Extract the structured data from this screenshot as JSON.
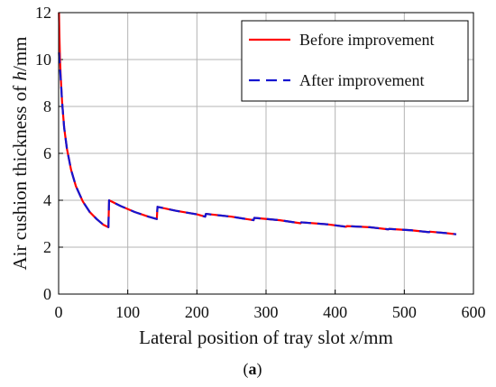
{
  "chart_data": {
    "type": "line",
    "title": "",
    "xlabel": {
      "prefix": "Lateral position of tray slot ",
      "var": "x",
      "suffix": "/mm"
    },
    "ylabel": {
      "prefix": "Air cushion thickness of ",
      "var": "h",
      "suffix": "/mm"
    },
    "xlim": [
      0,
      600
    ],
    "ylim": [
      0,
      12
    ],
    "xticks": [
      0,
      100,
      200,
      300,
      400,
      500,
      600
    ],
    "yticks": [
      0,
      2,
      4,
      6,
      8,
      10,
      12
    ],
    "grid": true,
    "legend_position": "top-right",
    "series": [
      {
        "name": "Before improvement",
        "color": "#ff0000",
        "dash": "solid",
        "points": [
          [
            0.5,
            12.0
          ],
          [
            1,
            11.2
          ],
          [
            2,
            10.0
          ],
          [
            3,
            9.3
          ],
          [
            5,
            8.2
          ],
          [
            8,
            7.1
          ],
          [
            12,
            6.2
          ],
          [
            18,
            5.3
          ],
          [
            25,
            4.6
          ],
          [
            35,
            3.95
          ],
          [
            45,
            3.5
          ],
          [
            55,
            3.2
          ],
          [
            65,
            2.95
          ],
          [
            72,
            2.85
          ],
          [
            73,
            4.0
          ],
          [
            90,
            3.75
          ],
          [
            110,
            3.5
          ],
          [
            130,
            3.3
          ],
          [
            142,
            3.2
          ],
          [
            143,
            3.72
          ],
          [
            170,
            3.55
          ],
          [
            200,
            3.4
          ],
          [
            212,
            3.3
          ],
          [
            213,
            3.42
          ],
          [
            250,
            3.3
          ],
          [
            282,
            3.15
          ],
          [
            283,
            3.25
          ],
          [
            320,
            3.15
          ],
          [
            350,
            3.02
          ],
          [
            351,
            3.06
          ],
          [
            390,
            2.97
          ],
          [
            416,
            2.87
          ],
          [
            417,
            2.9
          ],
          [
            450,
            2.85
          ],
          [
            477,
            2.76
          ],
          [
            478,
            2.78
          ],
          [
            510,
            2.72
          ],
          [
            536,
            2.64
          ],
          [
            537,
            2.66
          ],
          [
            560,
            2.6
          ],
          [
            575,
            2.55
          ]
        ]
      },
      {
        "name": "After improvement",
        "color": "#1515d0",
        "dash": "dashed",
        "points": [
          [
            0.5,
            10.3
          ],
          [
            1,
            10.0
          ],
          [
            2,
            9.6
          ],
          [
            3,
            9.2
          ],
          [
            5,
            8.2
          ],
          [
            8,
            7.1
          ],
          [
            12,
            6.2
          ],
          [
            18,
            5.3
          ],
          [
            25,
            4.6
          ],
          [
            35,
            3.95
          ],
          [
            45,
            3.5
          ],
          [
            55,
            3.2
          ],
          [
            65,
            2.95
          ],
          [
            72,
            2.85
          ],
          [
            73,
            4.0
          ],
          [
            90,
            3.75
          ],
          [
            110,
            3.5
          ],
          [
            130,
            3.3
          ],
          [
            142,
            3.2
          ],
          [
            143,
            3.72
          ],
          [
            170,
            3.55
          ],
          [
            200,
            3.4
          ],
          [
            212,
            3.3
          ],
          [
            213,
            3.42
          ],
          [
            250,
            3.3
          ],
          [
            282,
            3.15
          ],
          [
            283,
            3.25
          ],
          [
            320,
            3.15
          ],
          [
            350,
            3.02
          ],
          [
            351,
            3.06
          ],
          [
            390,
            2.97
          ],
          [
            416,
            2.87
          ],
          [
            417,
            2.9
          ],
          [
            450,
            2.85
          ],
          [
            477,
            2.76
          ],
          [
            478,
            2.78
          ],
          [
            510,
            2.72
          ],
          [
            536,
            2.64
          ],
          [
            537,
            2.66
          ],
          [
            560,
            2.6
          ],
          [
            575,
            2.55
          ]
        ]
      }
    ]
  },
  "caption": {
    "open": "(",
    "letter": "a",
    "close": ")"
  }
}
